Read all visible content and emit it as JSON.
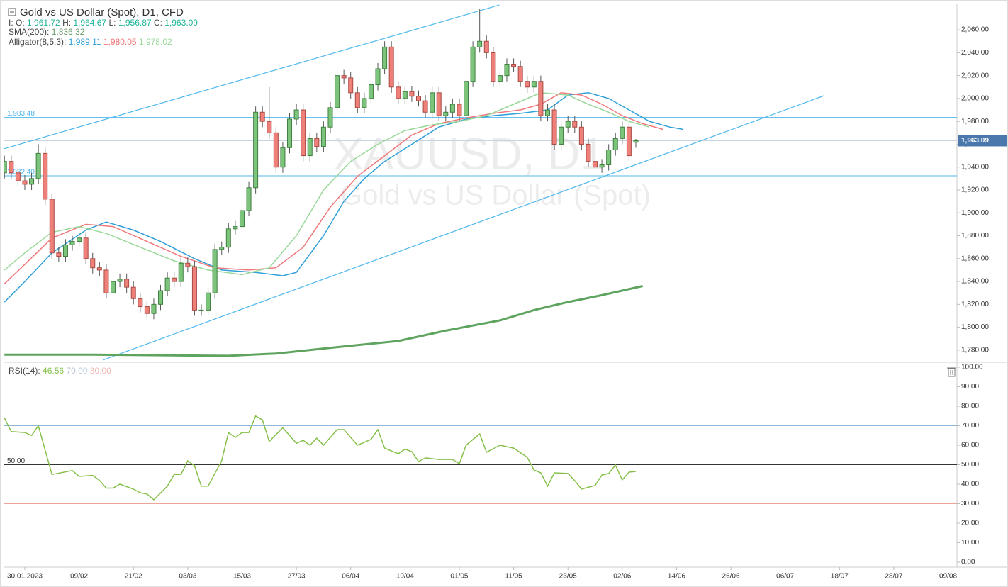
{
  "chart_data": {
    "type": "candlestick",
    "title": "Gold vs US Dollar (Spot), D1, CFD",
    "watermark": [
      "XAUUSD, D1",
      "Gold vs US Dollar (Spot)"
    ],
    "legend": {
      "ohlc": [
        {
          "key": "I: O:",
          "value": "1,961.72"
        },
        {
          "key": "H:",
          "value": "1,964.67"
        },
        {
          "key": "L:",
          "value": "1,956.87"
        },
        {
          "key": "C:",
          "value": "1,963.09"
        }
      ],
      "sma": {
        "key": "SMA(200):",
        "value": "1,836.32"
      },
      "alligator": {
        "key": "Alligator(8,5,3):",
        "values": [
          "1,989.11",
          "1,980.05",
          "1,978.02"
        ]
      }
    },
    "up_color": "#7cc47c",
    "down_color": "#ee8079",
    "x": [
      -3,
      -2,
      -1,
      0,
      1,
      2,
      3,
      4,
      5,
      6,
      7,
      8,
      9,
      10,
      11,
      12,
      13,
      14,
      15,
      16,
      17,
      18,
      19,
      20,
      21,
      22,
      23,
      24,
      25,
      26,
      27,
      28,
      29,
      30,
      31,
      32,
      33,
      34,
      35,
      36,
      37,
      38,
      39,
      40,
      41,
      42,
      43,
      44,
      45,
      46,
      47,
      48,
      49,
      50,
      51,
      52,
      53,
      54,
      55,
      56,
      57,
      58,
      59,
      60,
      61,
      62,
      63,
      64,
      65,
      66,
      67,
      68,
      69,
      70,
      71,
      72,
      73,
      74,
      75,
      76,
      77,
      78,
      79,
      80,
      81,
      82,
      83,
      84,
      85,
      86,
      87,
      88,
      89,
      90
    ],
    "open": [
      1935,
      1945,
      1935,
      1928,
      1925,
      1930,
      1952,
      1912,
      1865,
      1862,
      1872,
      1875,
      1878,
      1860,
      1852,
      1850,
      1830,
      1840,
      1842,
      1835,
      1825,
      1818,
      1812,
      1820,
      1832,
      1843,
      1840,
      1856,
      1853,
      1815,
      1815,
      1830,
      1868,
      1870,
      1886,
      1888,
      1902,
      1922,
      1988,
      1980,
      1970,
      1940,
      1957,
      1982,
      1990,
      1950,
      1965,
      1958,
      1975,
      1992,
      2020,
      2018,
      2005,
      1992,
      2000,
      2012,
      2026,
      2045,
      2010,
      2000,
      2006,
      2002,
      1998,
      1988,
      2005,
      1985,
      1988,
      1995,
      1985,
      2015,
      2045,
      2050,
      2040,
      2015,
      2020,
      2030,
      2028,
      2015,
      2010,
      2015,
      1985,
      1990,
      1960,
      1975,
      1980,
      1975,
      1960,
      1945,
      1940,
      1942,
      1955,
      1965,
      1975,
      1961.72
    ],
    "high": [
      1950,
      1950,
      1940,
      1933,
      1935,
      1960,
      1957,
      1917,
      1870,
      1877,
      1880,
      1883,
      1883,
      1865,
      1857,
      1855,
      1845,
      1847,
      1847,
      1840,
      1830,
      1823,
      1825,
      1837,
      1848,
      1848,
      1861,
      1861,
      1858,
      1820,
      1835,
      1873,
      1875,
      1891,
      1893,
      1907,
      1927,
      1993,
      1993,
      2010,
      1975,
      1962,
      1987,
      1995,
      1995,
      1970,
      1970,
      1980,
      1997,
      2025,
      2025,
      2023,
      2010,
      2005,
      2017,
      2031,
      2050,
      2050,
      2015,
      2011,
      2011,
      2007,
      2003,
      2010,
      2010,
      1993,
      2000,
      2000,
      2020,
      2050,
      2078,
      2055,
      2045,
      2025,
      2035,
      2035,
      2033,
      2020,
      2020,
      2020,
      1995,
      1995,
      1980,
      1985,
      1985,
      1980,
      1965,
      1950,
      1947,
      1960,
      1970,
      1980,
      1980,
      1964.67
    ],
    "low": [
      1930,
      1930,
      1923,
      1920,
      1920,
      1925,
      1907,
      1860,
      1857,
      1857,
      1867,
      1870,
      1855,
      1847,
      1845,
      1825,
      1825,
      1835,
      1830,
      1820,
      1813,
      1807,
      1807,
      1815,
      1827,
      1835,
      1835,
      1848,
      1810,
      1810,
      1810,
      1825,
      1863,
      1865,
      1881,
      1883,
      1897,
      1917,
      1975,
      1965,
      1935,
      1935,
      1952,
      1977,
      1945,
      1945,
      1953,
      1953,
      1970,
      1987,
      2013,
      2000,
      1987,
      1987,
      1995,
      2007,
      2021,
      2005,
      1995,
      1995,
      1997,
      1993,
      1983,
      1983,
      1980,
      1980,
      1983,
      1980,
      1980,
      2010,
      2040,
      2035,
      2010,
      2010,
      2015,
      2023,
      2010,
      2005,
      2005,
      1980,
      1980,
      1955,
      1955,
      1970,
      1970,
      1955,
      1940,
      1935,
      1935,
      1937,
      1950,
      1960,
      1945,
      1956.87
    ],
    "close": [
      1945,
      1935,
      1928,
      1925,
      1930,
      1952,
      1912,
      1865,
      1862,
      1872,
      1875,
      1878,
      1860,
      1852,
      1850,
      1830,
      1840,
      1842,
      1835,
      1825,
      1818,
      1812,
      1820,
      1832,
      1843,
      1840,
      1856,
      1853,
      1815,
      1815,
      1830,
      1868,
      1870,
      1886,
      1888,
      1902,
      1922,
      1988,
      1980,
      1970,
      1940,
      1957,
      1982,
      1990,
      1950,
      1965,
      1958,
      1975,
      1992,
      2020,
      2018,
      2005,
      1992,
      2000,
      2012,
      2026,
      2045,
      2010,
      2000,
      2006,
      2002,
      1998,
      1988,
      2005,
      1985,
      1988,
      1995,
      1985,
      2015,
      2045,
      2050,
      2040,
      2015,
      2020,
      2030,
      2028,
      2015,
      2010,
      2015,
      1985,
      1990,
      1960,
      1975,
      1980,
      1975,
      1960,
      1945,
      1940,
      1942,
      1955,
      1965,
      1975,
      1950,
      1963.09
    ],
    "lines": [
      {
        "color": "#2f9fd8",
        "x": [
          -3,
          0,
          4,
          9,
          12,
          16,
          20,
          25,
          29,
          34,
          38,
          40,
          44,
          47,
          50,
          53,
          57,
          61,
          65,
          69,
          73,
          77,
          80,
          83,
          86,
          89,
          92,
          95,
          97
        ],
        "values": [
          1822,
          1840,
          1865,
          1885,
          1892,
          1885,
          1875,
          1860,
          1850,
          1848,
          1845,
          1848,
          1880,
          1910,
          1930,
          1945,
          1960,
          1975,
          1982,
          1985,
          1987,
          1990,
          2003,
          2005,
          2000,
          1990,
          1980,
          1975,
          1973
        ]
      },
      {
        "color": "#f0787a",
        "x": [
          -3,
          0,
          4,
          9,
          13,
          18,
          23,
          28,
          33,
          37,
          41,
          45,
          49,
          53,
          57,
          61,
          65,
          69,
          73,
          76,
          79,
          82,
          85,
          88,
          91,
          94
        ],
        "values": [
          1838,
          1855,
          1878,
          1890,
          1888,
          1875,
          1862,
          1852,
          1850,
          1852,
          1870,
          1905,
          1932,
          1950,
          1968,
          1978,
          1983,
          1987,
          1990,
          1995,
          2005,
          2003,
          1995,
          1985,
          1978,
          1973
        ]
      },
      {
        "color": "#9ad89a",
        "x": [
          -3,
          0,
          4,
          8,
          12,
          17,
          22,
          27,
          32,
          36,
          40,
          44,
          48,
          52,
          56,
          60,
          64,
          68,
          72,
          76,
          80,
          83,
          86,
          89,
          92
        ],
        "values": [
          1850,
          1865,
          1883,
          1888,
          1882,
          1870,
          1858,
          1850,
          1846,
          1852,
          1880,
          1920,
          1945,
          1960,
          1972,
          1977,
          1980,
          1985,
          1995,
          2005,
          2003,
          1995,
          1988,
          1980,
          1975
        ]
      }
    ],
    "sma": {
      "color": "#5ea45e",
      "x": [
        -3,
        10,
        30,
        37,
        45,
        55,
        62,
        70,
        75,
        80,
        85,
        91
      ],
      "values": [
        1776,
        1776,
        1775,
        1777,
        1782,
        1788,
        1797,
        1806,
        1815,
        1822,
        1828,
        1836
      ]
    },
    "trendlines": [
      {
        "color": "#4fb8ec",
        "x": [
          -3.1,
          69.9
        ],
        "values": [
          1956,
          2081.7
        ]
      },
      {
        "color": "#4fb8ec",
        "x": [
          11.5,
          117.7
        ],
        "values": [
          1771.3,
          2002.4
        ]
      }
    ],
    "hlines": [
      {
        "value": 1983.48,
        "label": "1,983.48",
        "color": "#4fb8ec"
      },
      {
        "value": 1932.4,
        "label": "1,932.40",
        "color": "#4fb8ec"
      }
    ],
    "current_price": {
      "value": 1963.09,
      "label": "1,963.09",
      "color": "#4a78ad"
    },
    "xlim": [
      -3.13,
      137.3
    ],
    "xticks": [
      {
        "value": 0,
        "label": "30.01.2023"
      },
      {
        "value": 8,
        "label": "09/02"
      },
      {
        "value": 16,
        "label": "21/02"
      },
      {
        "value": 24,
        "label": "03/03"
      },
      {
        "value": 32,
        "label": "15/03"
      },
      {
        "value": 40,
        "label": "27/03"
      },
      {
        "value": 48,
        "label": "06/04"
      },
      {
        "value": 56,
        "label": "19/04"
      },
      {
        "value": 64,
        "label": "01/05"
      },
      {
        "value": 72,
        "label": "11/05"
      },
      {
        "value": 80,
        "label": "23/05"
      },
      {
        "value": 88,
        "label": "02/06"
      },
      {
        "value": 96,
        "label": "14/06"
      },
      {
        "value": 104,
        "label": "26/06"
      },
      {
        "value": 112,
        "label": "06/07"
      },
      {
        "value": 120,
        "label": "18/07"
      },
      {
        "value": 128,
        "label": "28/07"
      },
      {
        "value": 136,
        "label": "09/08"
      }
    ],
    "ylim": [
      1770,
      2083
    ],
    "yticks": [
      {
        "value": 1780,
        "label": "1,780.00"
      },
      {
        "value": 1800,
        "label": "1,800.00"
      },
      {
        "value": 1820,
        "label": "1,820.00"
      },
      {
        "value": 1840,
        "label": "1,840.00"
      },
      {
        "value": 1860,
        "label": "1,860.00"
      },
      {
        "value": 1880,
        "label": "1,880.00"
      },
      {
        "value": 1900,
        "label": "1,900.00"
      },
      {
        "value": 1920,
        "label": "1,920.00"
      },
      {
        "value": 1940,
        "label": "1,940.00"
      },
      {
        "value": 1960,
        "label": "1,960.00"
      },
      {
        "value": 1980,
        "label": "1,980.00"
      },
      {
        "value": 2000,
        "label": "2,000.00"
      },
      {
        "value": 2020,
        "label": "2,020.00"
      },
      {
        "value": 2040,
        "label": "2,040.00"
      },
      {
        "value": 2060,
        "label": "2,060.00"
      }
    ],
    "rsi": {
      "title": "RSI(14):",
      "value_label": "46.56",
      "upper_label": "70.00",
      "lower_label": "30.00",
      "color": "#86c04a",
      "x": [
        -3,
        -2,
        0,
        1,
        2,
        4,
        7,
        8,
        10,
        11,
        12,
        13,
        14,
        16,
        17,
        18,
        19,
        21,
        22,
        23,
        24,
        25,
        26,
        27,
        29,
        30,
        31,
        32,
        33,
        34,
        35,
        36,
        38,
        40,
        41,
        42,
        43,
        44,
        46,
        47,
        49,
        51,
        52,
        53,
        55,
        56,
        57,
        58,
        59,
        61,
        63,
        64,
        65,
        67,
        68,
        70,
        72,
        74,
        75,
        76,
        77,
        78,
        80,
        81,
        82,
        84,
        85,
        86,
        87,
        88,
        89,
        90
      ],
      "values": [
        74,
        67,
        66.5,
        65,
        70,
        45,
        47,
        44,
        44.5,
        42,
        38,
        38,
        40,
        37.5,
        35.6,
        35,
        32,
        39,
        45,
        45,
        52,
        49.5,
        39,
        39,
        52,
        66.5,
        64,
        66.5,
        66.5,
        75,
        73,
        62,
        69,
        61,
        62.5,
        60,
        63.6,
        60,
        68,
        68,
        60,
        63,
        68,
        58.5,
        55.6,
        58,
        56.7,
        51.6,
        53.5,
        52.7,
        52.7,
        50.5,
        60,
        65.8,
        56.4,
        60,
        58.5,
        53.8,
        47.3,
        45.8,
        39,
        45.8,
        45.5,
        41.8,
        37.5,
        39.3,
        44.7,
        45.5,
        49.8,
        42.2,
        46.2,
        46.56
      ],
      "levels": [
        {
          "value": 70,
          "color": "#8fb8dc"
        },
        {
          "value": 50,
          "label": "50.00",
          "color": "#333333"
        },
        {
          "value": 30,
          "color": "#eaa49a"
        }
      ],
      "ylim": [
        0,
        100
      ],
      "yticks": [
        {
          "value": 0,
          "label": "0.00"
        },
        {
          "value": 10,
          "label": "10.00"
        },
        {
          "value": 20,
          "label": "20.00"
        },
        {
          "value": 30,
          "label": "30.00"
        },
        {
          "value": 40,
          "label": "40.00"
        },
        {
          "value": 50,
          "label": "50.00"
        },
        {
          "value": 60,
          "label": "60.00"
        },
        {
          "value": 70,
          "label": "70.00"
        },
        {
          "value": 80,
          "label": "80.00"
        },
        {
          "value": 90,
          "label": "90.00"
        },
        {
          "value": 100,
          "label": "100.00"
        }
      ]
    }
  }
}
